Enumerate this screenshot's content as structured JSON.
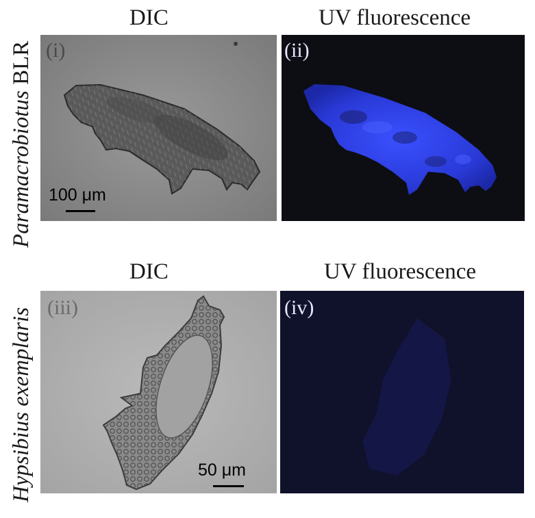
{
  "columns": {
    "dic": "DIC",
    "uv": "UV fluorescence"
  },
  "rows": [
    {
      "species": "Paramacrobiotus",
      "strain": "BLR"
    },
    {
      "species": "Hypsibius exemplaris",
      "strain": ""
    }
  ],
  "panels": [
    {
      "label": "(i)",
      "scale": "100 μm",
      "color": "#8d8d8d"
    },
    {
      "label": "(ii)",
      "scale": "",
      "color": "#2e3fe0"
    },
    {
      "label": "(iii)",
      "scale": "",
      "color": "#b2b2b2"
    },
    {
      "label": "(iv)",
      "scale": "50 μm",
      "color": "#10112a"
    }
  ]
}
